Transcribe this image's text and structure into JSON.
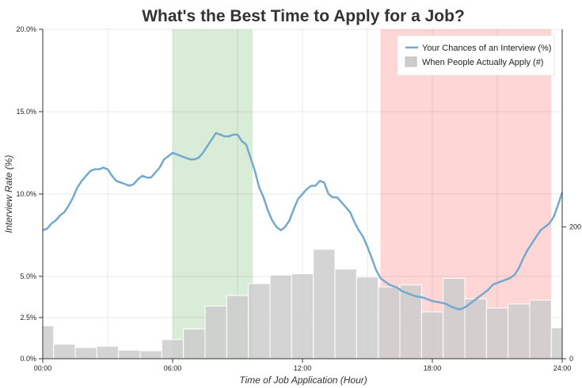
{
  "chart_data": {
    "type": "line",
    "title": "What's the Best Time to Apply for a Job?",
    "xlabel": "Time of Job Application (Hour)",
    "ylabel": "Interview Rate (%)",
    "xlim": [
      0,
      24
    ],
    "ylim": [
      0,
      20
    ],
    "y2lim": [
      0,
      500
    ],
    "x_tick_labels": [
      "00:00",
      "06:00",
      "12:00",
      "18:00",
      "24:00"
    ],
    "x_tick_values": [
      0,
      6,
      12,
      18,
      24
    ],
    "y_tick_labels": [
      "0.0%",
      "2.5%",
      "5.0%",
      "10.0%",
      "15.0%",
      "20.0%"
    ],
    "y_tick_values": [
      0,
      2.5,
      5,
      10,
      15,
      20
    ],
    "y2_tick_labels": [
      "0",
      "200"
    ],
    "y2_tick_values": [
      0,
      200
    ],
    "grid": true,
    "legend_position": "top-right",
    "highlight_bands": [
      {
        "x_start": 6.0,
        "x_end": 9.7,
        "color": "#d9ecd7"
      },
      {
        "x_start": 15.6,
        "x_end": 23.5,
        "color": "#ffd6d6"
      }
    ],
    "series": [
      {
        "name": "Your Chances of an Interview (%)",
        "type": "line",
        "color": "#74a9cf",
        "axis": "left",
        "x": [
          0,
          0.2,
          0.4,
          0.6,
          0.8,
          1.0,
          1.2,
          1.4,
          1.6,
          1.8,
          2.0,
          2.2,
          2.4,
          2.6,
          2.8,
          3.0,
          3.2,
          3.4,
          3.6,
          3.8,
          4.0,
          4.2,
          4.4,
          4.6,
          4.8,
          5.0,
          5.2,
          5.4,
          5.6,
          5.8,
          6.0,
          6.2,
          6.4,
          6.6,
          6.8,
          7.0,
          7.2,
          7.4,
          7.6,
          7.8,
          8.0,
          8.2,
          8.4,
          8.6,
          8.8,
          9.0,
          9.2,
          9.4,
          9.6,
          9.8,
          10.0,
          10.2,
          10.4,
          10.6,
          10.8,
          11.0,
          11.2,
          11.4,
          11.6,
          11.8,
          12.0,
          12.2,
          12.4,
          12.6,
          12.8,
          13.0,
          13.2,
          13.4,
          13.6,
          13.8,
          14.0,
          14.2,
          14.4,
          14.6,
          14.8,
          15.0,
          15.2,
          15.4,
          15.6,
          15.8,
          16.0,
          16.2,
          16.4,
          16.6,
          16.8,
          17.0,
          17.2,
          17.4,
          17.6,
          17.8,
          18.0,
          18.2,
          18.4,
          18.6,
          18.8,
          19.0,
          19.2,
          19.4,
          19.6,
          19.8,
          20.0,
          20.2,
          20.4,
          20.6,
          20.8,
          21.0,
          21.2,
          21.4,
          21.6,
          21.8,
          22.0,
          22.2,
          22.4,
          22.6,
          22.8,
          23.0,
          23.2,
          23.4,
          23.6,
          23.8,
          24.0
        ],
        "values": [
          7.8,
          7.9,
          8.2,
          8.4,
          8.7,
          8.9,
          9.3,
          9.8,
          10.4,
          10.8,
          11.1,
          11.4,
          11.5,
          11.5,
          11.6,
          11.5,
          11.1,
          10.8,
          10.7,
          10.6,
          10.5,
          10.6,
          10.9,
          11.1,
          11.0,
          11.0,
          11.3,
          11.6,
          12.1,
          12.3,
          12.5,
          12.4,
          12.3,
          12.2,
          12.1,
          12.1,
          12.2,
          12.5,
          12.9,
          13.3,
          13.7,
          13.6,
          13.5,
          13.5,
          13.6,
          13.6,
          13.2,
          13.0,
          12.2,
          11.4,
          10.4,
          9.8,
          9.0,
          8.4,
          8.0,
          7.8,
          8.0,
          8.4,
          9.1,
          9.7,
          10.0,
          10.3,
          10.5,
          10.5,
          10.8,
          10.7,
          10.0,
          9.8,
          9.8,
          9.5,
          9.2,
          8.9,
          8.3,
          7.8,
          7.4,
          6.8,
          6.1,
          5.4,
          4.9,
          4.7,
          4.5,
          4.4,
          4.3,
          4.1,
          4.0,
          3.9,
          3.8,
          3.75,
          3.7,
          3.6,
          3.5,
          3.45,
          3.4,
          3.35,
          3.2,
          3.1,
          3.0,
          3.05,
          3.2,
          3.4,
          3.6,
          3.8,
          4.0,
          4.2,
          4.5,
          4.6,
          4.7,
          4.8,
          4.9,
          5.1,
          5.5,
          6.1,
          6.6,
          7.0,
          7.4,
          7.8,
          8.0,
          8.2,
          8.6,
          9.3,
          10.1
        ]
      },
      {
        "name": "When People Actually Apply (#)",
        "type": "bar",
        "color": "#cccccc",
        "axis": "right",
        "bin_edges": [
          0,
          0.5,
          1.5,
          2.5,
          3.5,
          4.5,
          5.5,
          6.5,
          7.5,
          8.5,
          9.5,
          10.5,
          11.5,
          12.5,
          13.5,
          14.5,
          15.5,
          16.5,
          17.5,
          18.5,
          19.5,
          20.5,
          21.5,
          22.5,
          23.5,
          24
        ],
        "values": [
          50,
          22,
          17,
          19,
          13,
          12,
          29,
          45,
          80,
          96,
          114,
          127,
          129,
          166,
          136,
          124,
          109,
          112,
          71,
          122,
          91,
          77,
          83,
          89,
          47
        ]
      }
    ]
  }
}
